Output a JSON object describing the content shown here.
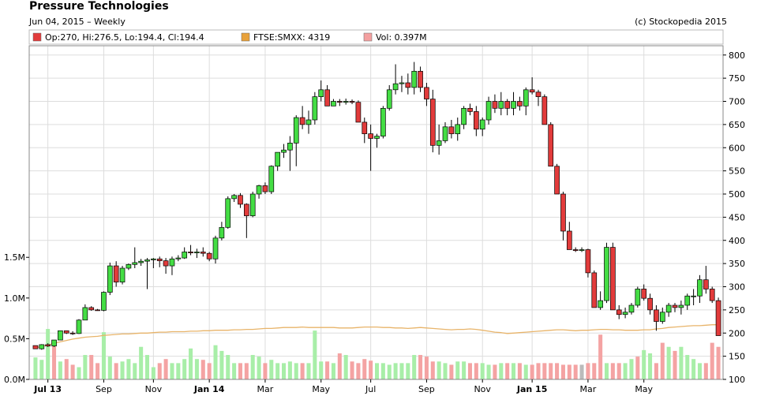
{
  "header": {
    "title": "Pressure Technologies",
    "subtitle": "Jun 04, 2015 – Weekly",
    "credit": "(c) Stockopedia 2015"
  },
  "legend": [
    {
      "label": "Op:270, Hi:276.5, Lo:194.4, Cl:194.4",
      "color": "#e23b3b"
    },
    {
      "label": "FTSE:SMXX: 4319",
      "color": "#e8a13a"
    },
    {
      "label": "Vol: 0.397M",
      "color": "#f4a0a0"
    }
  ],
  "colors": {
    "up": "#44dd44",
    "down": "#e23b3b",
    "vol_up": "#a8eea8",
    "vol_down": "#f4a3a3",
    "vol_flat": "#bbbbbb",
    "index_line": "#e8b46a",
    "grid": "#dddddd",
    "frame": "#888888"
  },
  "chart_data": {
    "type": "candlestick",
    "title": "Pressure Technologies",
    "subtitle": "Jun 04, 2015 – Weekly",
    "price_axis": {
      "ticks": [
        100,
        150,
        200,
        250,
        300,
        350,
        400,
        450,
        500,
        550,
        600,
        650,
        700,
        750,
        800
      ],
      "range": [
        100,
        820
      ],
      "position": "right"
    },
    "volume_axis": {
      "ticks": [
        "0.0M",
        "0.5M",
        "1.0M",
        "1.5M"
      ],
      "tick_values": [
        0,
        0.5,
        1.0,
        1.5
      ],
      "position": "left"
    },
    "x_axis": {
      "labels": [
        "Jul 13",
        "Sep",
        "Nov",
        "Jan 14",
        "Mar",
        "May",
        "Jul",
        "Sep",
        "Nov",
        "Jan 15",
        "Mar",
        "May"
      ],
      "bold_labels": [
        "Jul 13",
        "Jan 14",
        "Jan 15"
      ],
      "label_week_index": [
        2,
        11,
        19,
        28,
        37,
        46,
        54,
        63,
        72,
        80,
        89,
        98
      ]
    },
    "grid": true,
    "legend_position": "top-left",
    "candles": [
      [
        173,
        173,
        166,
        166
      ],
      [
        166,
        176,
        164,
        175
      ],
      [
        175,
        178,
        170,
        172
      ],
      [
        172,
        185,
        170,
        185
      ],
      [
        185,
        205,
        185,
        205
      ],
      [
        205,
        205,
        198,
        200
      ],
      [
        200,
        204,
        196,
        199
      ],
      [
        199,
        230,
        198,
        228
      ],
      [
        228,
        262,
        228,
        255
      ],
      [
        255,
        258,
        248,
        250
      ],
      [
        250,
        252,
        248,
        249
      ],
      [
        249,
        290,
        247,
        288
      ],
      [
        288,
        352,
        282,
        345
      ],
      [
        345,
        355,
        300,
        310
      ],
      [
        310,
        345,
        305,
        340
      ],
      [
        340,
        350,
        336,
        348
      ],
      [
        348,
        385,
        340,
        352
      ],
      [
        352,
        360,
        345,
        355
      ],
      [
        355,
        362,
        295,
        358
      ],
      [
        358,
        362,
        340,
        360
      ],
      [
        360,
        365,
        342,
        356
      ],
      [
        356,
        362,
        328,
        345
      ],
      [
        345,
        365,
        325,
        360
      ],
      [
        360,
        368,
        355,
        362
      ],
      [
        362,
        385,
        360,
        375
      ],
      [
        375,
        390,
        368,
        373
      ],
      [
        373,
        382,
        362,
        375
      ],
      [
        375,
        385,
        365,
        372
      ],
      [
        372,
        375,
        355,
        360
      ],
      [
        360,
        410,
        350,
        405
      ],
      [
        405,
        440,
        400,
        428
      ],
      [
        428,
        495,
        425,
        490
      ],
      [
        490,
        500,
        483,
        497
      ],
      [
        497,
        502,
        470,
        478
      ],
      [
        478,
        480,
        405,
        453
      ],
      [
        453,
        505,
        450,
        500
      ],
      [
        500,
        520,
        490,
        518
      ],
      [
        518,
        525,
        500,
        505
      ],
      [
        505,
        562,
        500,
        560
      ],
      [
        560,
        590,
        550,
        590
      ],
      [
        590,
        608,
        578,
        595
      ],
      [
        595,
        625,
        550,
        610
      ],
      [
        610,
        670,
        560,
        665
      ],
      [
        665,
        690,
        640,
        650
      ],
      [
        650,
        680,
        630,
        660
      ],
      [
        660,
        720,
        650,
        710
      ],
      [
        710,
        745,
        700,
        725
      ],
      [
        725,
        735,
        690,
        690
      ],
      [
        690,
        705,
        690,
        700
      ],
      [
        700,
        705,
        690,
        698
      ],
      [
        698,
        706,
        693,
        700
      ],
      [
        700,
        704,
        694,
        698
      ],
      [
        698,
        702,
        655,
        655
      ],
      [
        655,
        665,
        610,
        630
      ],
      [
        630,
        650,
        550,
        620
      ],
      [
        620,
        630,
        600,
        625
      ],
      [
        625,
        690,
        620,
        685
      ],
      [
        685,
        735,
        680,
        725
      ],
      [
        725,
        780,
        715,
        738
      ],
      [
        738,
        755,
        720,
        740
      ],
      [
        740,
        760,
        715,
        730
      ],
      [
        730,
        785,
        715,
        765
      ],
      [
        765,
        775,
        720,
        730
      ],
      [
        730,
        740,
        690,
        705
      ],
      [
        705,
        725,
        590,
        605
      ],
      [
        605,
        650,
        585,
        615
      ],
      [
        615,
        655,
        610,
        645
      ],
      [
        645,
        660,
        620,
        630
      ],
      [
        630,
        665,
        615,
        650
      ],
      [
        650,
        690,
        640,
        685
      ],
      [
        685,
        695,
        670,
        678
      ],
      [
        678,
        690,
        625,
        640
      ],
      [
        640,
        665,
        625,
        660
      ],
      [
        660,
        710,
        650,
        700
      ],
      [
        700,
        715,
        675,
        685
      ],
      [
        685,
        720,
        670,
        700
      ],
      [
        700,
        705,
        670,
        685
      ],
      [
        685,
        720,
        670,
        700
      ],
      [
        700,
        710,
        680,
        690
      ],
      [
        690,
        730,
        670,
        725
      ],
      [
        725,
        752,
        715,
        720
      ],
      [
        720,
        725,
        690,
        710
      ],
      [
        710,
        715,
        650,
        650
      ],
      [
        650,
        655,
        560,
        560
      ],
      [
        560,
        565,
        500,
        500
      ],
      [
        500,
        505,
        400,
        420
      ],
      [
        420,
        440,
        380,
        380
      ],
      [
        380,
        385,
        375,
        378
      ],
      [
        378,
        385,
        375,
        380
      ],
      [
        380,
        382,
        320,
        330
      ],
      [
        330,
        335,
        255,
        255
      ],
      [
        255,
        290,
        250,
        270
      ],
      [
        270,
        395,
        265,
        385
      ],
      [
        385,
        395,
        250,
        250
      ],
      [
        250,
        260,
        230,
        240
      ],
      [
        240,
        255,
        232,
        245
      ],
      [
        245,
        265,
        240,
        260
      ],
      [
        260,
        300,
        255,
        295
      ],
      [
        295,
        305,
        270,
        275
      ],
      [
        275,
        285,
        240,
        250
      ],
      [
        250,
        260,
        205,
        225
      ],
      [
        225,
        255,
        220,
        245
      ],
      [
        245,
        265,
        235,
        260
      ],
      [
        260,
        265,
        245,
        255
      ],
      [
        255,
        270,
        240,
        260
      ],
      [
        260,
        285,
        250,
        280
      ],
      [
        280,
        295,
        260,
        280
      ],
      [
        280,
        325,
        265,
        315
      ],
      [
        315,
        345,
        285,
        295
      ],
      [
        295,
        300,
        265,
        270
      ],
      [
        270,
        276.5,
        194.4,
        194.4
      ]
    ],
    "index_line_values": [
      168,
      171,
      174,
      178,
      181,
      184,
      187,
      189,
      191,
      192,
      193,
      195,
      196,
      197,
      198,
      198,
      199,
      200,
      200,
      201,
      202,
      202,
      203,
      203,
      203,
      204,
      204,
      205,
      205,
      206,
      206,
      206,
      207,
      207,
      208,
      208,
      209,
      210,
      210,
      211,
      212,
      212,
      212,
      213,
      212,
      212,
      212,
      212,
      212,
      211,
      211,
      211,
      212,
      213,
      213,
      213,
      212,
      212,
      211,
      211,
      210,
      211,
      212,
      211,
      210,
      209,
      208,
      207,
      208,
      208,
      209,
      208,
      206,
      204,
      202,
      201,
      199,
      200,
      201,
      202,
      203,
      204,
      205,
      206,
      207,
      207,
      206,
      205,
      206,
      206,
      207,
      208,
      208,
      207,
      207,
      206,
      206,
      206,
      207,
      207,
      209,
      210,
      212,
      213,
      214,
      215,
      216,
      216,
      217,
      218,
      218
    ],
    "volume_values": [
      0.27,
      0.24,
      0.62,
      0.42,
      0.22,
      0.25,
      0.18,
      0.15,
      0.3,
      0.3,
      0.2,
      0.58,
      0.28,
      0.2,
      0.22,
      0.25,
      0.2,
      0.4,
      0.3,
      0.15,
      0.2,
      0.25,
      0.2,
      0.2,
      0.25,
      0.38,
      0.25,
      0.24,
      0.2,
      0.42,
      0.35,
      0.3,
      0.2,
      0.2,
      0.2,
      0.3,
      0.28,
      0.2,
      0.24,
      0.2,
      0.2,
      0.22,
      0.2,
      0.2,
      0.2,
      0.6,
      0.22,
      0.22,
      0.2,
      0.32,
      0.3,
      0.22,
      0.2,
      0.25,
      0.23,
      0.2,
      0.2,
      0.18,
      0.2,
      0.2,
      0.2,
      0.3,
      0.3,
      0.28,
      0.22,
      0.22,
      0.2,
      0.18,
      0.22,
      0.22,
      0.2,
      0.2,
      0.2,
      0.18,
      0.18,
      0.2,
      0.2,
      0.2,
      0.2,
      0.18,
      0.18,
      0.2,
      0.2,
      0.2,
      0.2,
      0.18,
      0.18,
      0.18,
      0.18,
      0.2,
      0.2,
      0.55,
      0.2,
      0.2,
      0.2,
      0.2,
      0.25,
      0.28,
      0.36,
      0.32,
      0.2,
      0.45,
      0.4,
      0.35,
      0.4,
      0.3,
      0.25,
      0.2,
      0.2,
      0.45,
      0.4
    ],
    "volume_colors": [
      "up",
      "up",
      "up",
      "down",
      "up",
      "down",
      "down",
      "up",
      "up",
      "down",
      "down",
      "up",
      "up",
      "down",
      "up",
      "up",
      "up",
      "up",
      "up",
      "up",
      "down",
      "down",
      "up",
      "up",
      "up",
      "up",
      "up",
      "down",
      "down",
      "up",
      "up",
      "up",
      "up",
      "down",
      "down",
      "up",
      "up",
      "down",
      "up",
      "up",
      "up",
      "up",
      "up",
      "down",
      "up",
      "up",
      "up",
      "down",
      "up",
      "down",
      "up",
      "down",
      "down",
      "down",
      "down",
      "up",
      "up",
      "up",
      "up",
      "up",
      "up",
      "up",
      "down",
      "down",
      "down",
      "up",
      "up",
      "down",
      "up",
      "up",
      "down",
      "down",
      "up",
      "up",
      "down",
      "up",
      "down",
      "up",
      "down",
      "up",
      "down",
      "down",
      "down",
      "down",
      "down",
      "down",
      "down",
      "down",
      "flat",
      "down",
      "down",
      "down",
      "up",
      "down",
      "down",
      "up",
      "up",
      "down",
      "up",
      "up",
      "down",
      "down",
      "up",
      "down",
      "up",
      "up",
      "up",
      "up",
      "down",
      "down",
      "down"
    ]
  }
}
